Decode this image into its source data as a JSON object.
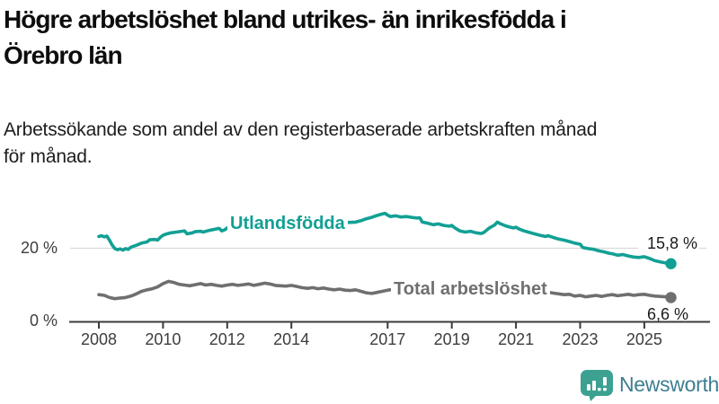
{
  "header": {
    "title": "Högre arbetslöshet bland utrikes- än inrikesfödda i Örebro län",
    "title_lines": [
      "Högre arbetslöshet bland utrikes- än inrikesfödda i",
      "Örebro län"
    ],
    "subtitle": "Arbetssökande som andel av den registerbaserade arbetskraften månad för månad.",
    "subtitle_lines": [
      "Arbetssökande som andel av den registerbaserade arbetskraften månad",
      "för månad."
    ]
  },
  "chart_data": {
    "type": "line",
    "title": "Högre arbetslöshet bland utrikes- än inrikesfödda i Örebro län",
    "subtitle": "Arbetssökande som andel av den registerbaserade arbetskraften månad för månad.",
    "unit": "%",
    "x_range": [
      2008,
      2025.83
    ],
    "ylim": [
      0,
      31
    ],
    "grid": "single horizontal gridline at 20 %",
    "legend_position": "labels placed inline on the lines",
    "y_ticks": [
      {
        "value": 0,
        "label": "0 %"
      },
      {
        "value": 20,
        "label": "20 %"
      }
    ],
    "x_ticks": [
      {
        "year": 2008,
        "label": "2008"
      },
      {
        "year": 2010,
        "label": "2010"
      },
      {
        "year": 2012,
        "label": "2012"
      },
      {
        "year": 2014,
        "label": "2014"
      },
      {
        "year": 2017,
        "label": "2017"
      },
      {
        "year": 2019,
        "label": "2019"
      },
      {
        "year": 2021,
        "label": "2021"
      },
      {
        "year": 2023,
        "label": "2023"
      },
      {
        "year": 2025,
        "label": "2025"
      }
    ],
    "series": [
      {
        "name": "Utlandsfödda",
        "color": "#12a094",
        "end_value": 15.8,
        "end_label": "15,8 %",
        "points": [
          [
            2008.0,
            23.2
          ],
          [
            2008.08,
            23.4
          ],
          [
            2008.17,
            23.1
          ],
          [
            2008.25,
            23.3
          ],
          [
            2008.33,
            22.2
          ],
          [
            2008.42,
            20.8
          ],
          [
            2008.5,
            19.9
          ],
          [
            2008.58,
            19.6
          ],
          [
            2008.67,
            19.8
          ],
          [
            2008.75,
            19.5
          ],
          [
            2008.83,
            19.9
          ],
          [
            2008.92,
            19.7
          ],
          [
            2009.0,
            20.3
          ],
          [
            2009.17,
            20.8
          ],
          [
            2009.33,
            21.4
          ],
          [
            2009.5,
            21.7
          ],
          [
            2009.58,
            22.3
          ],
          [
            2009.75,
            22.4
          ],
          [
            2009.83,
            22.2
          ],
          [
            2009.92,
            23.0
          ],
          [
            2010.0,
            23.5
          ],
          [
            2010.08,
            23.8
          ],
          [
            2010.25,
            24.2
          ],
          [
            2010.42,
            24.4
          ],
          [
            2010.58,
            24.6
          ],
          [
            2010.67,
            24.7
          ],
          [
            2010.75,
            23.9
          ],
          [
            2010.92,
            24.2
          ],
          [
            2011.0,
            24.5
          ],
          [
            2011.17,
            24.6
          ],
          [
            2011.25,
            24.4
          ],
          [
            2011.42,
            24.8
          ],
          [
            2011.58,
            25.1
          ],
          [
            2011.75,
            25.4
          ],
          [
            2011.83,
            24.7
          ],
          [
            2011.92,
            25.0
          ],
          [
            2012.0,
            25.5
          ],
          [
            2012.25,
            25.8
          ],
          [
            2012.5,
            26.0
          ],
          [
            2012.75,
            26.2
          ],
          [
            2013.0,
            26.1
          ],
          [
            2013.25,
            26.3
          ],
          [
            2013.5,
            26.5
          ],
          [
            2013.75,
            26.4
          ],
          [
            2014.0,
            26.6
          ],
          [
            2014.25,
            26.7
          ],
          [
            2014.5,
            26.8
          ],
          [
            2014.75,
            26.6
          ],
          [
            2015.0,
            26.7
          ],
          [
            2015.25,
            26.8
          ],
          [
            2015.5,
            26.9
          ],
          [
            2015.75,
            27.0
          ],
          [
            2016.0,
            27.1
          ],
          [
            2016.17,
            27.5
          ],
          [
            2016.33,
            28.0
          ],
          [
            2016.5,
            28.4
          ],
          [
            2016.67,
            28.9
          ],
          [
            2016.83,
            29.3
          ],
          [
            2016.92,
            29.5
          ],
          [
            2017.0,
            29.0
          ],
          [
            2017.08,
            28.6
          ],
          [
            2017.25,
            28.8
          ],
          [
            2017.42,
            28.5
          ],
          [
            2017.58,
            28.6
          ],
          [
            2017.75,
            28.4
          ],
          [
            2017.92,
            28.2
          ],
          [
            2018.0,
            28.3
          ],
          [
            2018.08,
            27.1
          ],
          [
            2018.25,
            26.8
          ],
          [
            2018.42,
            26.4
          ],
          [
            2018.58,
            26.6
          ],
          [
            2018.75,
            26.2
          ],
          [
            2018.92,
            26.0
          ],
          [
            2019.0,
            26.2
          ],
          [
            2019.08,
            25.6
          ],
          [
            2019.25,
            24.7
          ],
          [
            2019.42,
            24.4
          ],
          [
            2019.58,
            24.6
          ],
          [
            2019.75,
            24.2
          ],
          [
            2019.92,
            24.0
          ],
          [
            2020.0,
            24.3
          ],
          [
            2020.17,
            25.5
          ],
          [
            2020.33,
            26.3
          ],
          [
            2020.42,
            27.1
          ],
          [
            2020.5,
            26.7
          ],
          [
            2020.67,
            26.1
          ],
          [
            2020.83,
            25.7
          ],
          [
            2020.92,
            25.5
          ],
          [
            2021.0,
            25.7
          ],
          [
            2021.08,
            25.3
          ],
          [
            2021.25,
            24.7
          ],
          [
            2021.42,
            24.3
          ],
          [
            2021.58,
            23.9
          ],
          [
            2021.75,
            23.5
          ],
          [
            2021.92,
            23.2
          ],
          [
            2022.0,
            23.4
          ],
          [
            2022.17,
            22.9
          ],
          [
            2022.33,
            22.5
          ],
          [
            2022.5,
            22.2
          ],
          [
            2022.67,
            21.8
          ],
          [
            2022.83,
            21.4
          ],
          [
            2023.0,
            21.1
          ],
          [
            2023.08,
            20.2
          ],
          [
            2023.25,
            19.9
          ],
          [
            2023.42,
            19.7
          ],
          [
            2023.58,
            19.3
          ],
          [
            2023.75,
            19.0
          ],
          [
            2023.92,
            18.6
          ],
          [
            2024.0,
            18.5
          ],
          [
            2024.17,
            18.1
          ],
          [
            2024.33,
            18.3
          ],
          [
            2024.5,
            17.9
          ],
          [
            2024.67,
            17.6
          ],
          [
            2024.83,
            17.5
          ],
          [
            2025.0,
            17.7
          ],
          [
            2025.17,
            17.2
          ],
          [
            2025.33,
            16.6
          ],
          [
            2025.5,
            16.3
          ],
          [
            2025.67,
            16.0
          ],
          [
            2025.83,
            15.8
          ]
        ]
      },
      {
        "name": "Total arbetslöshet",
        "color": "#6f6f6f",
        "end_value": 6.6,
        "end_label": "6,6 %",
        "points": [
          [
            2008.0,
            7.4
          ],
          [
            2008.17,
            7.2
          ],
          [
            2008.33,
            6.6
          ],
          [
            2008.5,
            6.3
          ],
          [
            2008.67,
            6.5
          ],
          [
            2008.83,
            6.6
          ],
          [
            2009.0,
            7.0
          ],
          [
            2009.17,
            7.6
          ],
          [
            2009.33,
            8.3
          ],
          [
            2009.5,
            8.7
          ],
          [
            2009.67,
            9.0
          ],
          [
            2009.83,
            9.5
          ],
          [
            2010.0,
            10.4
          ],
          [
            2010.17,
            11.0
          ],
          [
            2010.33,
            10.7
          ],
          [
            2010.5,
            10.2
          ],
          [
            2010.67,
            10.0
          ],
          [
            2010.83,
            9.8
          ],
          [
            2011.0,
            10.1
          ],
          [
            2011.17,
            10.4
          ],
          [
            2011.33,
            10.0
          ],
          [
            2011.5,
            10.2
          ],
          [
            2011.67,
            9.9
          ],
          [
            2011.83,
            9.7
          ],
          [
            2012.0,
            10.0
          ],
          [
            2012.17,
            10.2
          ],
          [
            2012.33,
            9.9
          ],
          [
            2012.5,
            10.1
          ],
          [
            2012.67,
            10.3
          ],
          [
            2012.83,
            9.9
          ],
          [
            2013.0,
            10.2
          ],
          [
            2013.17,
            10.5
          ],
          [
            2013.33,
            10.3
          ],
          [
            2013.5,
            9.9
          ],
          [
            2013.67,
            9.8
          ],
          [
            2013.83,
            9.7
          ],
          [
            2014.0,
            9.9
          ],
          [
            2014.17,
            9.6
          ],
          [
            2014.33,
            9.3
          ],
          [
            2014.5,
            9.1
          ],
          [
            2014.67,
            9.3
          ],
          [
            2014.83,
            9.0
          ],
          [
            2015.0,
            9.2
          ],
          [
            2015.17,
            8.9
          ],
          [
            2015.33,
            8.7
          ],
          [
            2015.5,
            8.9
          ],
          [
            2015.67,
            8.6
          ],
          [
            2015.83,
            8.5
          ],
          [
            2016.0,
            8.7
          ],
          [
            2016.17,
            8.3
          ],
          [
            2016.33,
            7.9
          ],
          [
            2016.5,
            7.7
          ],
          [
            2016.67,
            8.0
          ],
          [
            2016.83,
            8.3
          ],
          [
            2017.0,
            8.6
          ],
          [
            2017.17,
            8.8
          ],
          [
            2017.5,
            8.6
          ],
          [
            2018.0,
            8.4
          ],
          [
            2018.5,
            8.2
          ],
          [
            2019.0,
            8.3
          ],
          [
            2019.5,
            8.4
          ],
          [
            2020.0,
            8.6
          ],
          [
            2020.42,
            10.2
          ],
          [
            2020.83,
            9.8
          ],
          [
            2021.25,
            9.2
          ],
          [
            2021.75,
            8.4
          ],
          [
            2022.17,
            7.8
          ],
          [
            2022.5,
            7.4
          ],
          [
            2022.67,
            7.5
          ],
          [
            2022.83,
            7.0
          ],
          [
            2023.0,
            7.2
          ],
          [
            2023.17,
            6.8
          ],
          [
            2023.33,
            7.0
          ],
          [
            2023.5,
            7.2
          ],
          [
            2023.67,
            6.9
          ],
          [
            2023.83,
            7.2
          ],
          [
            2024.0,
            7.4
          ],
          [
            2024.17,
            7.1
          ],
          [
            2024.33,
            7.3
          ],
          [
            2024.5,
            7.5
          ],
          [
            2024.67,
            7.2
          ],
          [
            2024.83,
            7.4
          ],
          [
            2025.0,
            7.5
          ],
          [
            2025.17,
            7.2
          ],
          [
            2025.33,
            7.0
          ],
          [
            2025.5,
            6.9
          ],
          [
            2025.67,
            6.8
          ],
          [
            2025.83,
            6.6
          ]
        ]
      }
    ]
  },
  "branding": {
    "logo_text": "Newsworthy",
    "logo_icon": "newsworthy-speech-bubble-bar-chart-icon",
    "icon_color": "#3ca191",
    "text_color": "#3e7e92"
  },
  "colors": {
    "background": "#ffffff",
    "axis": "#3b3b3b",
    "grid": "#d9d9d9",
    "tick_text": "#3d3d3d",
    "value_text": "#1a1a1a"
  }
}
